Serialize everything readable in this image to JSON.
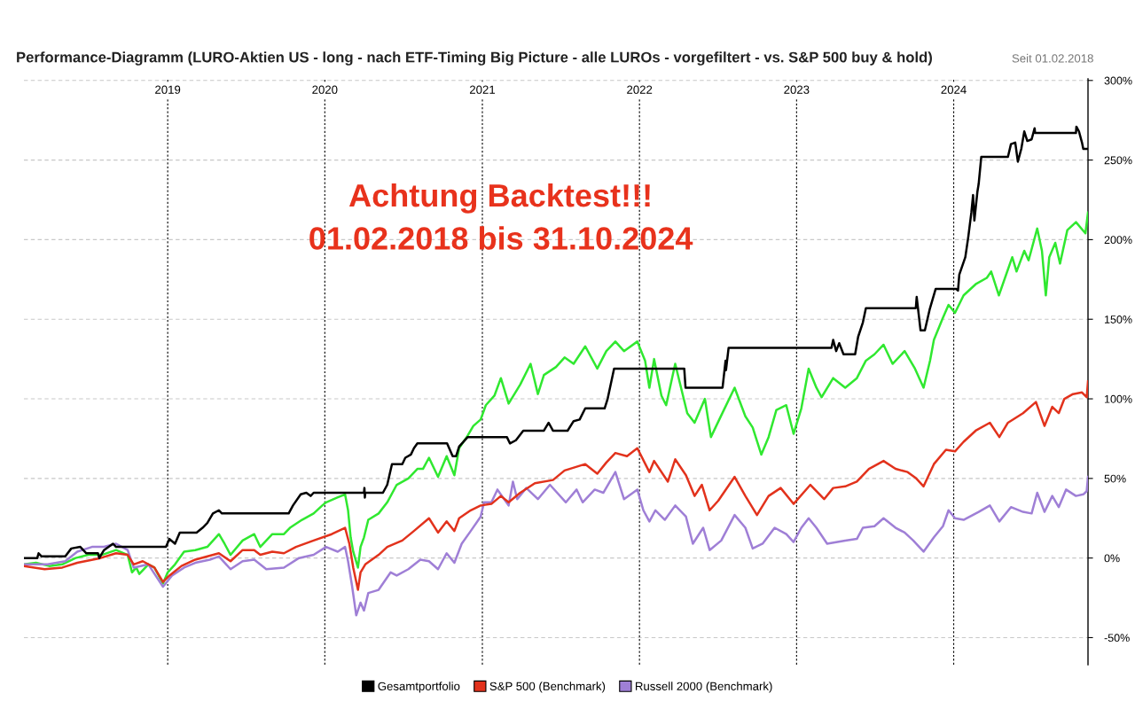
{
  "chart_data": {
    "type": "line",
    "title": "Performance-Diagramm (LURO-Aktien US - long - nach ETF-Timing Big Picture - alle LUROs - vorgefiltert - vs. S&P 500 buy & hold)",
    "subtitle": "Seit 01.02.2018",
    "annotations": [
      "Achtung Backtest!!!",
      "01.02.2018 bis 31.10.2024"
    ],
    "xlim": [
      "2018-02-01",
      "2024-11-08"
    ],
    "ylim": [
      -67,
      301
    ],
    "xticks": [
      "2019",
      "2020",
      "2021",
      "2022",
      "2023",
      "2024"
    ],
    "yticks": [
      {
        "value": -50,
        "label": "-50%"
      },
      {
        "value": 0,
        "label": "0%"
      },
      {
        "value": 50,
        "label": "50%"
      },
      {
        "value": 100,
        "label": "100%"
      },
      {
        "value": 150,
        "label": "150%"
      },
      {
        "value": 200,
        "label": "200%"
      },
      {
        "value": 250,
        "label": "250%"
      },
      {
        "value": 300,
        "label": "300%"
      }
    ],
    "grid": true,
    "legend": "bottom",
    "line_style": "solid",
    "series": [
      {
        "name": "Gesamtportfolio",
        "color": "#000000",
        "x": [
          "2018-02-01",
          "2018-03-04",
          "2018-03-07",
          "2018-03-14",
          "2018-05-08",
          "2018-05-22",
          "2018-06-12",
          "2018-06-26",
          "2018-07-23",
          "2018-07-26",
          "2018-08-06",
          "2018-08-27",
          "2018-09-03",
          "2018-12-28",
          "2019-01-05",
          "2019-01-18",
          "2019-01-29",
          "2019-03-09",
          "2019-03-23",
          "2019-04-03",
          "2019-04-16",
          "2019-04-30",
          "2019-05-07",
          "2019-10-09",
          "2019-10-19",
          "2019-11-06",
          "2019-11-19",
          "2019-11-29",
          "2019-12-06",
          "2020-04-01",
          "2020-04-02",
          "2020-04-03",
          "2020-04-04",
          "2020-05-15",
          "2020-05-25",
          "2020-06-05",
          "2020-06-29",
          "2020-07-06",
          "2020-07-19",
          "2020-07-26",
          "2020-08-03",
          "2020-10-11",
          "2020-10-24",
          "2020-11-01",
          "2020-11-08",
          "2020-11-28",
          "2021-02-27",
          "2021-03-06",
          "2021-03-20",
          "2021-04-06",
          "2021-05-24",
          "2021-06-04",
          "2021-06-14",
          "2021-07-18",
          "2021-08-01",
          "2021-08-15",
          "2021-08-28",
          "2021-10-12",
          "2021-10-19",
          "2021-11-03",
          "2022-04-15",
          "2022-04-18",
          "2022-07-13",
          "2022-07-20",
          "2022-07-21",
          "2022-07-27",
          "2023-03-23",
          "2023-03-27",
          "2023-04-03",
          "2023-04-10",
          "2023-04-20",
          "2023-05-17",
          "2023-05-24",
          "2023-06-04",
          "2023-06-11",
          "2023-10-05",
          "2023-10-07",
          "2023-10-16",
          "2023-10-26",
          "2023-11-06",
          "2023-11-20",
          "2024-01-07",
          "2024-01-11",
          "2024-01-14",
          "2024-01-28",
          "2024-02-04",
          "2024-02-11",
          "2024-02-15",
          "2024-02-18",
          "2024-02-25",
          "2024-02-28",
          "2024-03-05",
          "2024-05-06",
          "2024-05-13",
          "2024-05-23",
          "2024-05-29",
          "2024-06-06",
          "2024-06-13",
          "2024-06-20",
          "2024-06-30",
          "2024-07-07",
          "2024-07-08",
          "2024-10-11",
          "2024-10-12",
          "2024-10-18",
          "2024-10-25",
          "2024-10-28",
          "2024-11-08"
        ],
        "values": [
          0,
          0,
          3,
          1,
          1,
          6,
          7,
          3,
          3,
          0,
          5,
          9,
          7,
          7,
          12,
          9,
          16,
          16,
          19,
          22,
          28,
          30,
          28,
          28,
          33,
          40,
          41,
          39,
          41,
          41,
          44,
          38,
          41,
          41,
          46,
          59,
          59,
          63,
          65,
          69,
          72,
          72,
          64,
          64,
          70,
          76,
          76,
          72,
          74,
          80,
          80,
          85,
          80,
          80,
          86,
          87,
          94,
          94,
          100,
          119,
          119,
          107,
          107,
          124,
          118,
          132,
          132,
          137,
          130,
          135,
          128,
          128,
          139,
          148,
          157,
          157,
          164,
          143,
          143,
          156,
          169,
          169,
          168,
          178,
          189,
          202,
          217,
          228,
          212,
          230,
          235,
          252,
          252,
          260,
          261,
          249,
          257,
          268,
          262,
          263,
          270,
          267,
          267,
          271,
          268,
          261,
          257,
          257
        ]
      },
      {
        "name": "S&P 500 (Benchmark)",
        "color": "#e2321c",
        "x": [
          "2018-02-01",
          "2018-03-21",
          "2018-05-01",
          "2018-06-05",
          "2018-07-29",
          "2018-09-03",
          "2018-09-30",
          "2018-10-14",
          "2018-11-04",
          "2018-12-01",
          "2018-12-21",
          "2019-01-05",
          "2019-02-02",
          "2019-03-06",
          "2019-04-30",
          "2019-05-27",
          "2019-06-24",
          "2019-07-21",
          "2019-08-04",
          "2019-09-01",
          "2019-09-28",
          "2019-10-26",
          "2019-12-06",
          "2020-01-17",
          "2020-02-17",
          "2020-02-27",
          "2020-03-07",
          "2020-03-18",
          "2020-03-24",
          "2020-04-04",
          "2020-05-05",
          "2020-05-25",
          "2020-06-29",
          "2020-07-26",
          "2020-08-30",
          "2020-09-20",
          "2020-10-10",
          "2020-10-28",
          "2020-11-08",
          "2020-12-05",
          "2020-12-28",
          "2021-01-22",
          "2021-02-13",
          "2021-03-03",
          "2021-03-30",
          "2021-05-03",
          "2021-06-14",
          "2021-07-11",
          "2021-08-28",
          "2021-09-25",
          "2021-10-16",
          "2021-11-06",
          "2021-12-03",
          "2021-12-27",
          "2022-01-24",
          "2022-02-04",
          "2022-03-08",
          "2022-03-25",
          "2022-04-19",
          "2022-05-09",
          "2022-05-26",
          "2022-06-13",
          "2022-07-03",
          "2022-08-10",
          "2022-09-04",
          "2022-10-01",
          "2022-10-28",
          "2022-11-25",
          "2022-12-25",
          "2023-02-02",
          "2023-03-06",
          "2023-03-27",
          "2023-04-24",
          "2023-05-21",
          "2023-06-18",
          "2023-07-22",
          "2023-08-19",
          "2023-09-16",
          "2023-10-06",
          "2023-10-23",
          "2023-11-16",
          "2023-12-14",
          "2024-01-04",
          "2024-01-24",
          "2024-02-21",
          "2024-03-25",
          "2024-04-16",
          "2024-05-06",
          "2024-06-10",
          "2024-07-10",
          "2024-07-30",
          "2024-08-17",
          "2024-09-01",
          "2024-09-14",
          "2024-10-04",
          "2024-10-25",
          "2024-11-05",
          "2024-11-08"
        ],
        "values": [
          -5,
          -7,
          -6,
          -3,
          0,
          3,
          2,
          -4,
          -2,
          -6,
          -15,
          -11,
          -5,
          -1,
          3,
          -2,
          5,
          5,
          2,
          4,
          3,
          7,
          11,
          15,
          19,
          9,
          -6,
          -20,
          -9,
          -4,
          2,
          7,
          11,
          17,
          25,
          16,
          23,
          17,
          25,
          30,
          33,
          34,
          39,
          35,
          41,
          47,
          49,
          55,
          59,
          53,
          60,
          66,
          64,
          69,
          54,
          61,
          48,
          62,
          52,
          39,
          46,
          30,
          36,
          51,
          39,
          27,
          39,
          44,
          34,
          46,
          37,
          44,
          45,
          48,
          56,
          61,
          56,
          54,
          50,
          45,
          59,
          68,
          67,
          73,
          80,
          85,
          76,
          85,
          91,
          98,
          83,
          95,
          91,
          100,
          103,
          104,
          101,
          111
        ]
      },
      {
        "name": "Russell 2000 (Benchmark)",
        "color": "#9f7fd6",
        "x": [
          "2018-02-01",
          "2018-03-28",
          "2018-05-08",
          "2018-06-05",
          "2018-07-09",
          "2018-08-06",
          "2018-09-03",
          "2018-09-30",
          "2018-10-14",
          "2018-11-17",
          "2018-12-21",
          "2019-01-11",
          "2019-02-08",
          "2019-03-06",
          "2019-04-09",
          "2019-04-30",
          "2019-05-27",
          "2019-06-24",
          "2019-07-21",
          "2019-08-18",
          "2019-09-28",
          "2019-11-02",
          "2019-12-06",
          "2020-01-04",
          "2020-01-31",
          "2020-02-17",
          "2020-02-24",
          "2020-03-04",
          "2020-03-14",
          "2020-03-24",
          "2020-04-01",
          "2020-04-11",
          "2020-05-05",
          "2020-06-02",
          "2020-06-16",
          "2020-07-13",
          "2020-08-10",
          "2020-08-30",
          "2020-09-20",
          "2020-10-10",
          "2020-10-28",
          "2020-11-14",
          "2020-12-05",
          "2020-12-28",
          "2021-01-05",
          "2021-01-22",
          "2021-02-05",
          "2021-03-03",
          "2021-03-13",
          "2021-03-23",
          "2021-04-13",
          "2021-05-10",
          "2021-06-07",
          "2021-07-14",
          "2021-08-08",
          "2021-08-22",
          "2021-09-19",
          "2021-10-09",
          "2021-11-06",
          "2021-11-26",
          "2021-12-27",
          "2022-01-10",
          "2022-01-24",
          "2022-02-07",
          "2022-03-01",
          "2022-03-25",
          "2022-04-19",
          "2022-05-05",
          "2022-05-29",
          "2022-06-13",
          "2022-07-10",
          "2022-08-10",
          "2022-09-04",
          "2022-09-21",
          "2022-10-14",
          "2022-11-11",
          "2022-12-08",
          "2022-12-25",
          "2023-01-12",
          "2023-01-29",
          "2023-02-16",
          "2023-03-13",
          "2023-04-24",
          "2023-05-21",
          "2023-06-04",
          "2023-07-01",
          "2023-07-22",
          "2023-08-19",
          "2023-09-09",
          "2023-09-29",
          "2023-10-23",
          "2023-11-16",
          "2023-12-07",
          "2023-12-20",
          "2024-01-04",
          "2024-01-24",
          "2024-02-28",
          "2024-03-25",
          "2024-04-16",
          "2024-05-13",
          "2024-06-10",
          "2024-06-30",
          "2024-07-13",
          "2024-07-30",
          "2024-08-17",
          "2024-09-01",
          "2024-09-18",
          "2024-10-11",
          "2024-10-28",
          "2024-11-05",
          "2024-11-08"
        ],
        "values": [
          -4,
          -4,
          -2,
          4,
          7,
          7,
          9,
          5,
          -6,
          -4,
          -18,
          -11,
          -6,
          -3,
          -1,
          1,
          -7,
          -2,
          -1,
          -7,
          -6,
          0,
          2,
          7,
          4,
          7,
          -2,
          -17,
          -36,
          -28,
          -33,
          -22,
          -20,
          -9,
          -11,
          -7,
          -1,
          -2,
          -7,
          3,
          -3,
          9,
          17,
          26,
          35,
          35,
          43,
          33,
          48,
          37,
          44,
          37,
          46,
          35,
          43,
          35,
          43,
          41,
          54,
          37,
          43,
          30,
          23,
          30,
          24,
          33,
          26,
          9,
          19,
          5,
          11,
          27,
          19,
          6,
          9,
          19,
          15,
          10,
          19,
          25,
          19,
          9,
          11,
          12,
          19,
          20,
          25,
          19,
          16,
          11,
          4,
          13,
          20,
          30,
          25,
          24,
          29,
          33,
          23,
          32,
          29,
          28,
          41,
          29,
          39,
          32,
          43,
          39,
          40,
          42,
          51
        ]
      },
      {
        "color": "#30e830",
        "x": [
          "2018-02-01",
          "2018-03-01",
          "2018-04-01",
          "2018-05-01",
          "2018-06-01",
          "2018-07-01",
          "2018-08-01",
          "2018-09-03",
          "2018-09-30",
          "2018-10-10",
          "2018-10-20",
          "2018-10-27",
          "2018-11-17",
          "2018-12-01",
          "2018-12-21",
          "2019-01-01",
          "2019-01-18",
          "2019-02-08",
          "2019-03-06",
          "2019-04-03",
          "2019-04-30",
          "2019-05-13",
          "2019-05-27",
          "2019-06-24",
          "2019-07-21",
          "2019-08-04",
          "2019-09-01",
          "2019-09-28",
          "2019-10-12",
          "2019-11-09",
          "2019-12-06",
          "2019-12-26",
          "2020-01-04",
          "2020-01-30",
          "2020-02-17",
          "2020-02-24",
          "2020-03-01",
          "2020-03-07",
          "2020-03-18",
          "2020-03-24",
          "2020-04-01",
          "2020-04-11",
          "2020-05-05",
          "2020-05-25",
          "2020-06-16",
          "2020-07-13",
          "2020-08-03",
          "2020-08-16",
          "2020-08-30",
          "2020-09-20",
          "2020-10-10",
          "2020-10-28",
          "2020-11-08",
          "2020-11-28",
          "2020-12-11",
          "2020-12-28",
          "2021-01-09",
          "2021-01-29",
          "2021-02-13",
          "2021-03-03",
          "2021-03-30",
          "2021-04-23",
          "2021-05-10",
          "2021-05-24",
          "2021-06-21",
          "2021-07-11",
          "2021-08-01",
          "2021-08-28",
          "2021-09-25",
          "2021-10-16",
          "2021-11-06",
          "2021-11-26",
          "2021-12-27",
          "2022-01-14",
          "2022-01-24",
          "2022-02-04",
          "2022-02-21",
          "2022-03-04",
          "2022-03-25",
          "2022-04-22",
          "2022-05-09",
          "2022-06-02",
          "2022-06-16",
          "2022-07-16",
          "2022-08-10",
          "2022-09-04",
          "2022-09-21",
          "2022-10-11",
          "2022-10-28",
          "2022-11-15",
          "2022-12-08",
          "2022-12-25",
          "2023-01-12",
          "2023-01-29",
          "2023-02-16",
          "2023-02-28",
          "2023-03-27",
          "2023-04-24",
          "2023-05-21",
          "2023-06-11",
          "2023-07-01",
          "2023-07-22",
          "2023-08-12",
          "2023-09-09",
          "2023-10-03",
          "2023-10-23",
          "2023-11-07",
          "2023-11-16",
          "2023-12-07",
          "2023-12-20",
          "2024-01-04",
          "2024-01-24",
          "2024-02-21",
          "2024-03-18",
          "2024-03-28",
          "2024-04-15",
          "2024-05-16",
          "2024-05-26",
          "2024-06-13",
          "2024-06-23",
          "2024-07-13",
          "2024-07-24",
          "2024-08-02",
          "2024-08-10",
          "2024-08-24",
          "2024-09-04",
          "2024-09-21",
          "2024-10-11",
          "2024-11-02",
          "2024-11-08"
        ],
        "values": [
          -4,
          -3,
          -5,
          -4,
          0,
          2,
          2,
          5,
          2,
          -9,
          -6,
          -10,
          -4,
          -6,
          -16,
          -9,
          -4,
          4,
          5,
          7,
          15,
          9,
          2,
          11,
          15,
          7,
          15,
          15,
          19,
          24,
          28,
          33,
          35,
          38,
          40,
          30,
          13,
          4,
          -6,
          7,
          13,
          24,
          28,
          35,
          46,
          50,
          56,
          56,
          63,
          51,
          64,
          52,
          69,
          77,
          83,
          87,
          96,
          102,
          113,
          97,
          109,
          122,
          103,
          115,
          120,
          126,
          122,
          133,
          119,
          130,
          136,
          130,
          136,
          124,
          107,
          125,
          102,
          96,
          122,
          91,
          85,
          100,
          76,
          93,
          107,
          89,
          82,
          65,
          76,
          93,
          96,
          78,
          94,
          119,
          107,
          101,
          113,
          107,
          113,
          124,
          128,
          134,
          122,
          130,
          119,
          107,
          124,
          137,
          151,
          159,
          154,
          165,
          172,
          176,
          180,
          165,
          189,
          180,
          193,
          187,
          207,
          193,
          165,
          189,
          198,
          185,
          206,
          211,
          204,
          217
        ]
      }
    ]
  }
}
